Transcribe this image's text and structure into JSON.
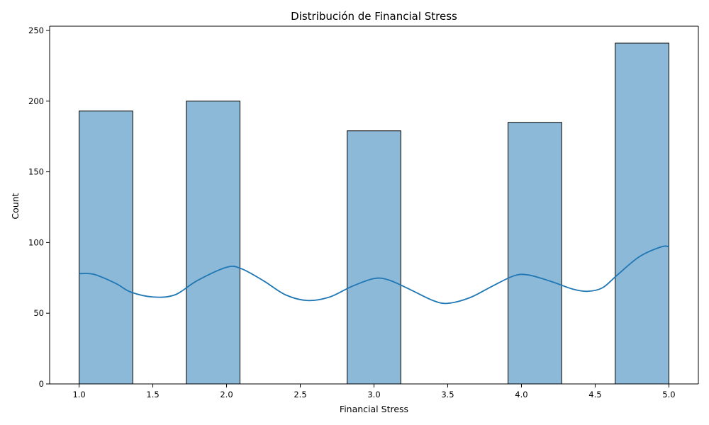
{
  "chart_data": {
    "type": "bar",
    "title": "Distribución de Financial Stress",
    "xlabel": "Financial Stress",
    "ylabel": "Count",
    "xlim": [
      0.8,
      5.2
    ],
    "ylim": [
      0,
      253
    ],
    "xticks": [
      1.0,
      1.5,
      2.0,
      2.5,
      3.0,
      3.5,
      4.0,
      4.5,
      5.0
    ],
    "xtick_labels": [
      "1.0",
      "1.5",
      "2.0",
      "2.5",
      "3.0",
      "3.5",
      "4.0",
      "4.5",
      "5.0"
    ],
    "yticks": [
      0,
      50,
      100,
      150,
      200,
      250
    ],
    "ytick_labels": [
      "0",
      "50",
      "100",
      "150",
      "200",
      "250"
    ],
    "bins": [
      {
        "x0": 1.0,
        "x1": 1.364,
        "count": 193
      },
      {
        "x0": 1.364,
        "x1": 1.727,
        "count": 0
      },
      {
        "x0": 1.727,
        "x1": 2.091,
        "count": 200
      },
      {
        "x0": 2.091,
        "x1": 2.455,
        "count": 0
      },
      {
        "x0": 2.455,
        "x1": 2.818,
        "count": 0
      },
      {
        "x0": 2.818,
        "x1": 3.182,
        "count": 179
      },
      {
        "x0": 3.182,
        "x1": 3.545,
        "count": 0
      },
      {
        "x0": 3.545,
        "x1": 3.909,
        "count": 0
      },
      {
        "x0": 3.909,
        "x1": 4.273,
        "count": 185
      },
      {
        "x0": 4.273,
        "x1": 4.636,
        "count": 0
      },
      {
        "x0": 4.636,
        "x1": 5.0,
        "count": 241
      }
    ],
    "kde": {
      "x": [
        1.0,
        1.1,
        1.25,
        1.35,
        1.5,
        1.65,
        1.8,
        2.0,
        2.1,
        2.25,
        2.4,
        2.55,
        2.7,
        2.85,
        3.0,
        3.1,
        3.25,
        3.4,
        3.5,
        3.65,
        3.8,
        3.95,
        4.05,
        4.2,
        4.35,
        4.45,
        4.55,
        4.65,
        4.8,
        4.95,
        5.0
      ],
      "y": [
        78,
        77.5,
        71,
        65,
        61.5,
        63,
        73,
        82.5,
        81.5,
        73,
        63,
        59,
        61.5,
        69,
        74.5,
        73.5,
        66.5,
        59,
        57,
        61,
        69,
        76.5,
        77,
        72.5,
        67,
        65.5,
        68,
        77,
        90,
        97,
        97
      ]
    },
    "colors": {
      "bar_fill": "#8db9d9",
      "bar_edge": "#000000",
      "kde_line": "#1f77b4"
    },
    "grid": false,
    "legend": "none"
  }
}
